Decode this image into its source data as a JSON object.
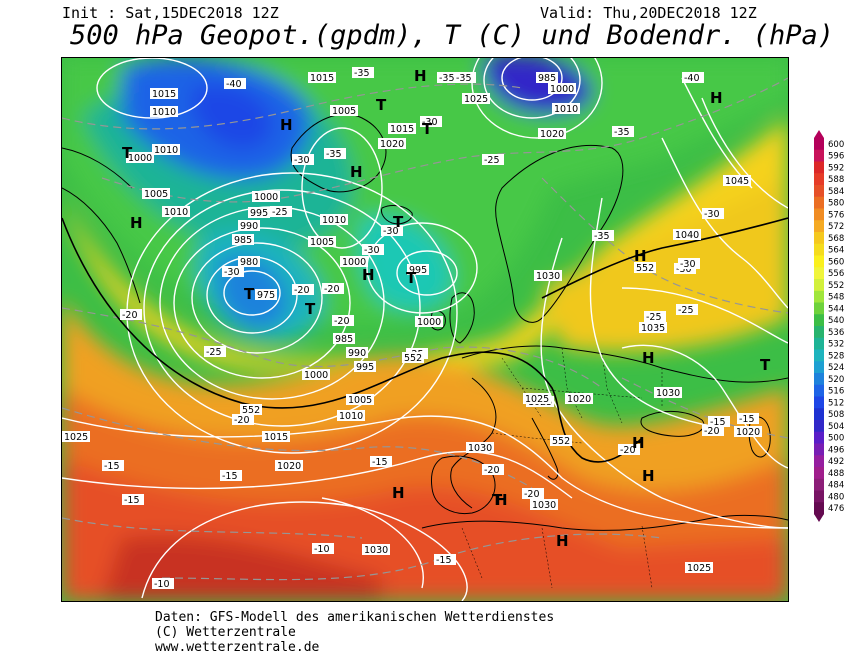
{
  "header": {
    "init": "Init : Sat,15DEC2018 12Z",
    "valid": "Valid: Thu,20DEC2018 12Z",
    "title": "500 hPa Geopot.(gpdm), T (C) und Bodendr. (hPa)"
  },
  "footer": {
    "line1": "Daten: GFS-Modell des amerikanischen Wetterdienstes",
    "line2": "(C) Wetterzentrale",
    "line3": "www.wetterzentrale.de"
  },
  "scale": {
    "values": [
      "600",
      "596",
      "592",
      "588",
      "584",
      "580",
      "576",
      "572",
      "568",
      "564",
      "560",
      "556",
      "552",
      "548",
      "544",
      "540",
      "536",
      "532",
      "528",
      "524",
      "520",
      "516",
      "512",
      "508",
      "504",
      "500",
      "496",
      "492",
      "488",
      "484",
      "480",
      "476"
    ],
    "colors": [
      "#b4005a",
      "#c8145a",
      "#dc2828",
      "#e63c28",
      "#e65028",
      "#eb6e23",
      "#f08c23",
      "#f5aa23",
      "#f5c81e",
      "#f5dc1e",
      "#faf01e",
      "#f0f53c",
      "#d2f03c",
      "#a0e63c",
      "#6ed23c",
      "#3cbe46",
      "#28b46e",
      "#1eb496",
      "#1eb4be",
      "#1ea0d2",
      "#1e82dc",
      "#1e64e6",
      "#1e46e6",
      "#1e32d2",
      "#3228c8",
      "#5a1ec8",
      "#781eb4",
      "#961ea0",
      "#a01e8c",
      "#8c1e78",
      "#781464",
      "#640a50"
    ]
  },
  "pressure_labels": [
    {
      "t": "1015"
    },
    {
      "t": "1010"
    },
    {
      "t": "1015"
    },
    {
      "t": "1005"
    },
    {
      "t": "1020"
    },
    {
      "t": "1015"
    },
    {
      "t": "1025"
    },
    {
      "t": "985"
    },
    {
      "t": "1000"
    },
    {
      "t": "1010"
    },
    {
      "t": "1020"
    },
    {
      "t": "1010"
    },
    {
      "t": "1000"
    },
    {
      "t": "1005"
    },
    {
      "t": "1010"
    },
    {
      "t": "1000"
    },
    {
      "t": "995"
    },
    {
      "t": "990"
    },
    {
      "t": "985"
    },
    {
      "t": "980"
    },
    {
      "t": "975"
    },
    {
      "t": "1010"
    },
    {
      "t": "1005"
    },
    {
      "t": "1000"
    },
    {
      "t": "995"
    },
    {
      "t": "1000"
    },
    {
      "t": "985"
    },
    {
      "t": "990"
    },
    {
      "t": "995"
    },
    {
      "t": "1000"
    },
    {
      "t": "1005"
    },
    {
      "t": "1010"
    },
    {
      "t": "1015"
    },
    {
      "t": "1020"
    },
    {
      "t": "1025"
    },
    {
      "t": "1030"
    },
    {
      "t": "1030"
    },
    {
      "t": "1025"
    },
    {
      "t": "1020"
    },
    {
      "t": "1030"
    },
    {
      "t": "1035"
    },
    {
      "t": "1040"
    },
    {
      "t": "1045"
    },
    {
      "t": "1030"
    },
    {
      "t": "1020"
    },
    {
      "t": "1025"
    },
    {
      "t": "1030"
    },
    {
      "t": "1025"
    }
  ],
  "temp_labels": [
    {
      "t": "-40"
    },
    {
      "t": "-35"
    },
    {
      "t": "-35"
    },
    {
      "t": "-35"
    },
    {
      "t": "-30"
    },
    {
      "t": "-35"
    },
    {
      "t": "-25"
    },
    {
      "t": "-40"
    },
    {
      "t": "-35"
    },
    {
      "t": "-30"
    },
    {
      "t": "-25"
    },
    {
      "t": "-30"
    },
    {
      "t": "-30"
    },
    {
      "t": "-35"
    },
    {
      "t": "-30"
    },
    {
      "t": "-20"
    },
    {
      "t": "-25"
    },
    {
      "t": "-20"
    },
    {
      "t": "-20"
    },
    {
      "t": "-25"
    },
    {
      "t": "-30"
    },
    {
      "t": "-25"
    },
    {
      "t": "-20"
    },
    {
      "t": "-20"
    },
    {
      "t": "-15"
    },
    {
      "t": "-15"
    },
    {
      "t": "-15"
    },
    {
      "t": "-15"
    },
    {
      "t": "-20"
    },
    {
      "t": "-15"
    },
    {
      "t": "-20"
    },
    {
      "t": "-20"
    },
    {
      "t": "-20"
    },
    {
      "t": "-10"
    },
    {
      "t": "-10"
    },
    {
      "t": "-15"
    },
    {
      "t": "-25"
    },
    {
      "t": "-20"
    },
    {
      "t": "-15"
    },
    {
      "t": "-30"
    },
    {
      "t": "-30"
    }
  ],
  "geo_labels": [
    {
      "t": "552"
    },
    {
      "t": "552"
    },
    {
      "t": "552"
    },
    {
      "t": "552"
    }
  ],
  "centers": [
    {
      "t": "H"
    },
    {
      "t": "H"
    },
    {
      "t": "H"
    },
    {
      "t": "H"
    },
    {
      "t": "H"
    },
    {
      "t": "H"
    },
    {
      "t": "H"
    },
    {
      "t": "H"
    },
    {
      "t": "H"
    },
    {
      "t": "H"
    },
    {
      "t": "H"
    },
    {
      "t": "H"
    },
    {
      "t": "H"
    },
    {
      "t": "T"
    },
    {
      "t": "T"
    },
    {
      "t": "T"
    },
    {
      "t": "T"
    },
    {
      "t": "T"
    },
    {
      "t": "T"
    },
    {
      "t": "T"
    },
    {
      "t": "T"
    },
    {
      "t": "T"
    }
  ]
}
